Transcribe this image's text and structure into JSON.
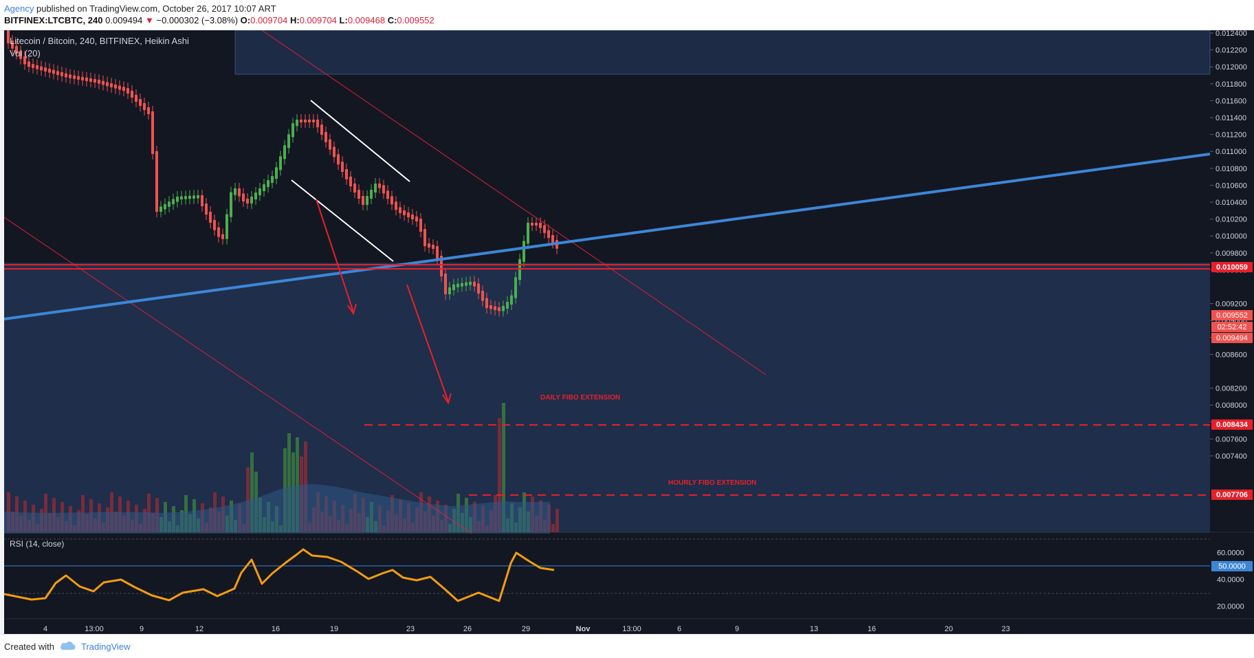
{
  "publish": {
    "author": "Agency",
    "text": " published on TradingView.com, October 26, 2017 10:07 ART"
  },
  "quote": {
    "symbol": "BITFINEX:LTCBTC, 240",
    "last": "0.009494",
    "arrow": "▼",
    "change": "−0.000302 (−3.08%)",
    "o_label": "O:",
    "o": "0.009704",
    "h_label": "H:",
    "h": "0.009704",
    "l_label": "L:",
    "l": "0.009468",
    "c_label": "C:",
    "c": "0.009552"
  },
  "legend": {
    "title": "Litecoin / Bitcoin, 240, BITFINEX, Heikin Ashi",
    "vol": "Vol (20)",
    "rsi": "RSI (14, close)"
  },
  "annotations": {
    "daily": "DAILY FIBO EXTENSION",
    "hourly": "HOURLY FIBO EXTENSION"
  },
  "price_axis": {
    "ticks": [
      "0.012400",
      "0.012200",
      "0.012000",
      "0.011800",
      "0.011600",
      "0.011400",
      "0.011200",
      "0.011000",
      "0.010800",
      "0.010600",
      "0.010400",
      "0.010200",
      "0.010000",
      "0.009800",
      "0.009600",
      "0.009200",
      "0.009000",
      "0.008800",
      "0.008600",
      "0.008200",
      "0.008000",
      "0.007800",
      "0.007600",
      "0.007400"
    ],
    "labels": {
      "resistance": "0.010059",
      "close": "0.009552",
      "countdown": "02:52:42",
      "last": "0.009494",
      "daily_fibo": "0.008434",
      "hourly_fibo": "0.007706"
    }
  },
  "rsi_axis": {
    "ticks": [
      "60.0000",
      "40.0000",
      "20.0000"
    ],
    "current": "50.0000"
  },
  "time_axis": [
    "4",
    "13:00",
    "9",
    "12",
    "16",
    "19",
    "23",
    "26",
    "29",
    "Nov",
    "13:00",
    "6",
    "9",
    "13",
    "16",
    "20",
    "23"
  ],
  "footer": {
    "created": "Created with",
    "brand": "TradingView"
  },
  "colors": {
    "background": "#131722",
    "up": "#26a69a",
    "down": "#ef5350",
    "trendline": "#3d86d6",
    "rsi": "#f39c12",
    "accent_red": "#e8202b"
  }
}
